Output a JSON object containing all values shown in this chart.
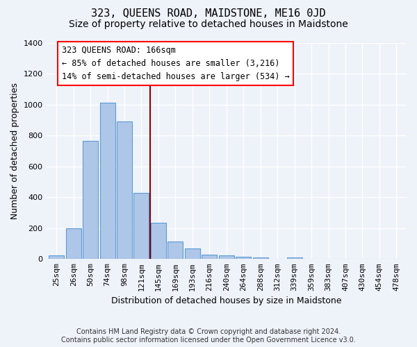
{
  "title": "323, QUEENS ROAD, MAIDSTONE, ME16 0JD",
  "subtitle": "Size of property relative to detached houses in Maidstone",
  "xlabel": "Distribution of detached houses by size in Maidstone",
  "ylabel": "Number of detached properties",
  "footer_line1": "Contains HM Land Registry data © Crown copyright and database right 2024.",
  "footer_line2": "Contains public sector information licensed under the Open Government Licence v3.0.",
  "bar_labels": [
    "25sqm",
    "26sqm",
    "50sqm",
    "74sqm",
    "98sqm",
    "121sqm",
    "145sqm",
    "169sqm",
    "193sqm",
    "216sqm",
    "240sqm",
    "264sqm",
    "288sqm",
    "312sqm",
    "339sqm",
    "359sqm",
    "383sqm",
    "407sqm",
    "430sqm",
    "454sqm",
    "478sqm"
  ],
  "bar_values": [
    22,
    200,
    765,
    1010,
    890,
    430,
    237,
    112,
    70,
    27,
    22,
    15,
    10,
    0,
    12,
    0,
    0,
    0,
    0,
    0,
    0
  ],
  "bar_color": "#aec6e8",
  "bar_edge_color": "#5b9bd5",
  "ylim": [
    0,
    1400
  ],
  "yticks": [
    0,
    200,
    400,
    600,
    800,
    1000,
    1200,
    1400
  ],
  "property_line_x": 5.5,
  "annotation_title": "323 QUEENS ROAD: 166sqm",
  "annotation_line1": "← 85% of detached houses are smaller (3,216)",
  "annotation_line2": "14% of semi-detached houses are larger (534) →",
  "bg_color": "#eef2f9",
  "grid_color": "#ffffff",
  "title_fontsize": 11,
  "subtitle_fontsize": 10,
  "label_fontsize": 9,
  "tick_fontsize": 8,
  "annotation_fontsize": 8.5,
  "footer_fontsize": 7
}
